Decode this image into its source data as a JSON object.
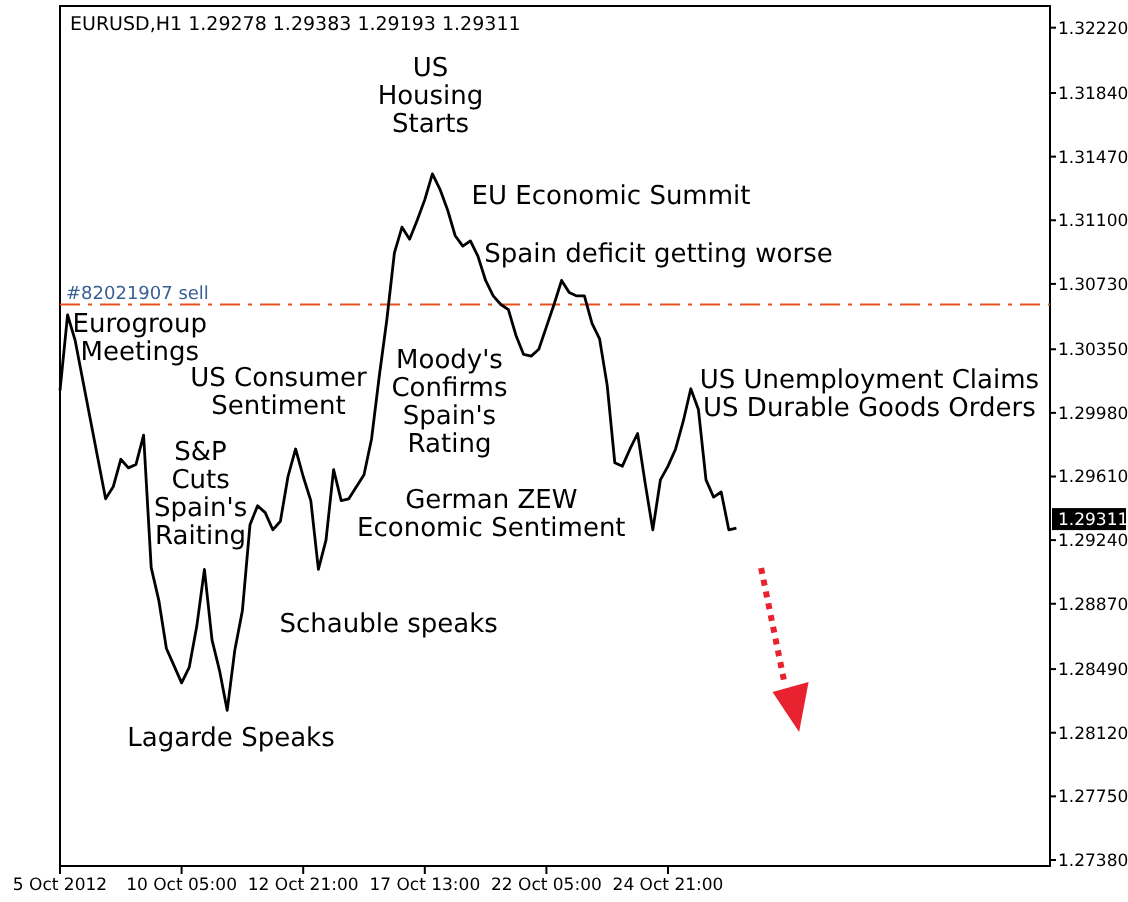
{
  "chart_data": {
    "type": "line",
    "title": "EURUSD,H1  1.29278 1.29383 1.29193 1.29311",
    "categories": [
      "5 Oct 2012",
      null,
      null,
      null,
      null,
      null,
      null,
      null,
      null,
      null,
      null,
      null,
      null,
      null,
      null,
      null,
      "10 Oct 05:00",
      null,
      null,
      null,
      null,
      null,
      null,
      null,
      null,
      null,
      null,
      null,
      null,
      null,
      null,
      null,
      "12 Oct 21:00",
      null,
      null,
      null,
      null,
      null,
      null,
      null,
      null,
      null,
      null,
      null,
      null,
      null,
      null,
      null,
      "17 Oct 13:00",
      null,
      null,
      null,
      null,
      null,
      null,
      null,
      null,
      null,
      null,
      null,
      null,
      null,
      null,
      null,
      "22 Oct 05:00",
      null,
      null,
      null,
      null,
      null,
      null,
      null,
      null,
      null,
      null,
      null,
      null,
      null,
      null,
      null,
      "24 Oct 21:00",
      null,
      null,
      null,
      null,
      null,
      null,
      null,
      null,
      null
    ],
    "series": [
      {
        "color": "#000000",
        "values": [
          1.3011,
          1.3055,
          1.304,
          1.3017,
          1.2994,
          1.2971,
          1.2948,
          1.2955,
          1.2971,
          1.2966,
          1.2968,
          1.2985,
          1.2908,
          1.2889,
          1.2861,
          1.2851,
          1.2841,
          1.285,
          1.2874,
          1.2907,
          1.2866,
          1.2848,
          1.2825,
          1.286,
          1.2883,
          1.2933,
          1.2944,
          1.294,
          1.293,
          1.2935,
          1.2961,
          1.2977,
          1.2961,
          1.2947,
          1.2907,
          1.2924,
          1.2965,
          1.2947,
          1.2948,
          1.2955,
          1.2962,
          1.2983,
          1.3019,
          1.3052,
          1.3091,
          1.3106,
          1.3099,
          1.311,
          1.3122,
          1.3137,
          1.3128,
          1.3116,
          1.3101,
          1.3095,
          1.3098,
          1.3089,
          1.3075,
          1.3066,
          1.3061,
          1.3058,
          1.3043,
          1.3032,
          1.3031,
          1.3035,
          1.3048,
          1.3061,
          1.3075,
          1.3068,
          1.3066,
          1.3066,
          1.305,
          1.3041,
          1.3014,
          1.2969,
          1.2967,
          1.2977,
          1.2986,
          1.2957,
          1.293,
          1.2959,
          1.2967,
          1.2977,
          1.2993,
          1.3012,
          1.3,
          1.2959,
          1.2949,
          1.2952,
          1.293,
          1.2931
        ]
      }
    ],
    "ylim": [
      1.27345,
      1.32346
    ],
    "yticks": [
      {
        "value": 1.3222,
        "label": "1.32220"
      },
      {
        "value": 1.3184,
        "label": "1.31840"
      },
      {
        "value": 1.3147,
        "label": "1.31470"
      },
      {
        "value": 1.311,
        "label": "1.31100"
      },
      {
        "value": 1.3073,
        "label": "1.30730"
      },
      {
        "value": 1.3035,
        "label": "1.30350"
      },
      {
        "value": 1.2998,
        "label": "1.29980"
      },
      {
        "value": 1.2961,
        "label": "1.29610"
      },
      {
        "value": 1.2924,
        "label": "1.29240"
      },
      {
        "value": 1.2887,
        "label": "1.28870"
      },
      {
        "value": 1.2849,
        "label": "1.28490"
      },
      {
        "value": 1.2812,
        "label": "1.28120"
      },
      {
        "value": 1.2775,
        "label": "1.27750"
      },
      {
        "value": 1.2738,
        "label": "1.27380"
      }
    ],
    "ref_lines": [
      {
        "axis": "y",
        "value": 1.3061,
        "label": "#82021907 sell",
        "color": "#e8501e",
        "line_style": "dashed"
      }
    ],
    "annotations": [
      "Eurogroup\nMeetings",
      "US Consumer\nSentiment",
      "S&P\nCuts\nSpain's\nRaiting",
      "Moody's\nConfirms\nSpain's\nRating",
      "US\nHousing\nStarts",
      "EU Economic Summit",
      "Spain deficit getting worse",
      "US Unemployment Claims\nUS Durable Goods Orders",
      "German ZEW\nEconomic Sentiment",
      "Schauble speaks",
      "Lagarde Speaks",
      "1.29311"
    ],
    "grid": false,
    "line_style": "solid"
  }
}
